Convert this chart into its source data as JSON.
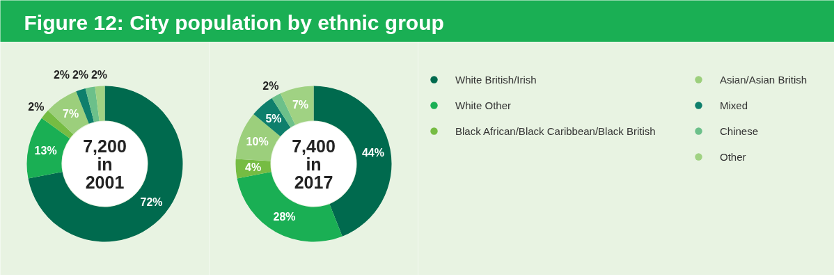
{
  "chart_data": {
    "type": "donut",
    "title": "Figure 12: City population by ethnic group",
    "categories": [
      "White British/Irish",
      "White Other",
      "Black African/Black Caribbean/Black British",
      "Asian/Asian British",
      "Mixed",
      "Chinese",
      "Other"
    ],
    "colors": [
      "#006a4e",
      "#1aaf54",
      "#76bc43",
      "#9ccf7c",
      "#0e7f6c",
      "#6cc08a",
      "#a0d283"
    ],
    "legend": "right",
    "series": [
      {
        "name": "7,200 in 2001",
        "values": [
          72,
          13,
          2,
          7,
          2,
          2,
          2
        ],
        "value_labels": [
          "72%",
          "13%",
          "2%",
          "7%",
          "2%",
          "2%",
          "2%"
        ]
      },
      {
        "name": "7,400 in 2017",
        "values": [
          44,
          28,
          4,
          10,
          5,
          2,
          7
        ],
        "value_labels": [
          "44%",
          "28%",
          "4%",
          "10%",
          "5%",
          "2%",
          "7%"
        ]
      }
    ]
  }
}
